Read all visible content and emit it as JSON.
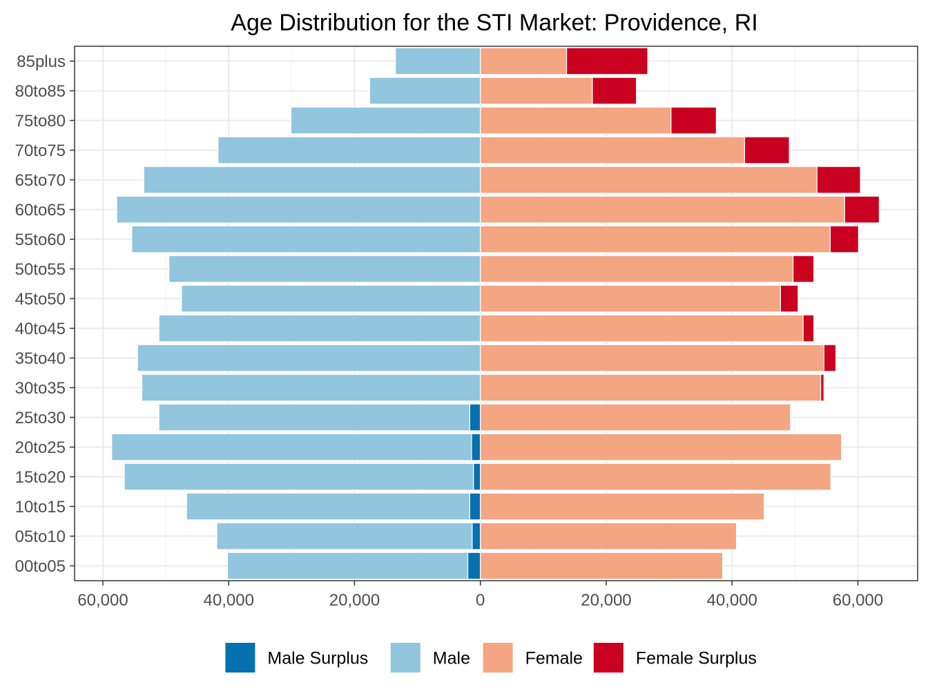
{
  "chart_data": {
    "type": "bar",
    "orientation": "horizontal",
    "layout": "population-pyramid",
    "title": "Age Distribution for the STI Market: Providence, RI",
    "xlabel": "",
    "ylabel": "",
    "xlim": [
      -64500,
      69500
    ],
    "x_ticks": [
      {
        "value": -60000,
        "label": "60,000"
      },
      {
        "value": -40000,
        "label": "40,000"
      },
      {
        "value": -20000,
        "label": "20,000"
      },
      {
        "value": 0,
        "label": "0"
      },
      {
        "value": 20000,
        "label": "20,000"
      },
      {
        "value": 40000,
        "label": "40,000"
      },
      {
        "value": 60000,
        "label": "60,000"
      }
    ],
    "grid": true,
    "legend_position": "bottom",
    "categories": [
      "00to05",
      "05to10",
      "10to15",
      "15to20",
      "20to25",
      "25to30",
      "30to35",
      "35to40",
      "40to45",
      "45to50",
      "50to55",
      "55to60",
      "60to65",
      "65to70",
      "70to75",
      "75to80",
      "80to85",
      "85plus"
    ],
    "series": [
      {
        "name": "Male Surplus",
        "color": "#0571b0",
        "side": "left",
        "values": [
          2000,
          1300,
          1700,
          1100,
          1400,
          1700,
          0,
          0,
          0,
          0,
          0,
          0,
          0,
          0,
          0,
          0,
          0,
          0
        ]
      },
      {
        "name": "Male",
        "color": "#92c5de",
        "side": "left",
        "values": [
          38200,
          40600,
          45000,
          55500,
          57200,
          49400,
          53800,
          54500,
          51100,
          47500,
          49500,
          55400,
          57800,
          53500,
          41700,
          30100,
          17600,
          13500
        ]
      },
      {
        "name": "Female",
        "color": "#f4a582",
        "side": "right",
        "values": [
          38500,
          40700,
          45100,
          55700,
          57400,
          49300,
          54100,
          54600,
          51300,
          47700,
          49700,
          55600,
          57900,
          53500,
          42000,
          30300,
          17800,
          13700
        ]
      },
      {
        "name": "Female Surplus",
        "color": "#ca0020",
        "side": "right",
        "values": [
          0,
          0,
          0,
          0,
          0,
          0,
          500,
          1900,
          1700,
          2800,
          3300,
          4500,
          5500,
          6900,
          7100,
          7200,
          7000,
          12900
        ]
      }
    ]
  }
}
